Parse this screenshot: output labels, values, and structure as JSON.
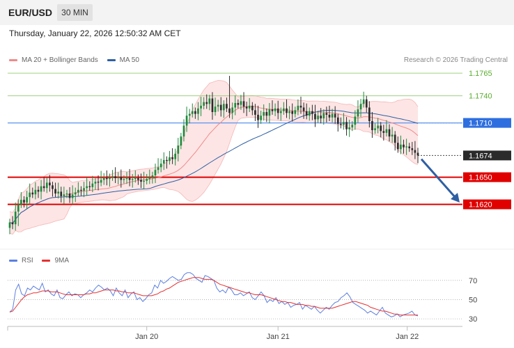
{
  "header": {
    "symbol": "EUR/USD",
    "timeframe": "30 MIN"
  },
  "datetime": "Thursday, January 22, 2026 12:50:32 AM CET",
  "legend": {
    "ma20": {
      "label": "MA 20 + Bollinger Bands",
      "color": "#f08a8a"
    },
    "ma50": {
      "label": "MA 50",
      "color": "#2e5fa3"
    }
  },
  "credit": "Research © 2026 Trading Central",
  "rsi_legend": {
    "rsi": {
      "label": "RSI",
      "color": "#5b7fe0"
    },
    "ma9": {
      "label": "9MA",
      "color": "#e53030"
    }
  },
  "chart_data": [
    {
      "type": "candlestick",
      "title": "EUR/USD 30 MIN",
      "ylim": [
        1.1572,
        1.1772
      ],
      "x_ticks": [
        "Jan 20",
        "Jan 21",
        "Jan 22"
      ],
      "price_levels": [
        {
          "value": 1.1765,
          "label": "1.1765",
          "role": "resistance",
          "color": "#5aad2e"
        },
        {
          "value": 1.174,
          "label": "1.1740",
          "role": "resistance",
          "color": "#5aad2e"
        },
        {
          "value": 1.171,
          "label": "1.1710",
          "role": "pivot",
          "color": "#2e6fe0"
        },
        {
          "value": 1.1674,
          "label": "1.1674",
          "role": "last price",
          "color": "#333333"
        },
        {
          "value": 1.165,
          "label": "1.1650",
          "role": "support",
          "color": "#e00000"
        },
        {
          "value": 1.162,
          "label": "1.1620",
          "role": "support",
          "color": "#e00000"
        }
      ],
      "forecast_arrow": {
        "from": 1.167,
        "to": 1.1622
      },
      "close": [
        1.16,
        1.1598,
        1.1612,
        1.162,
        1.1625,
        1.1622,
        1.1628,
        1.1633,
        1.1631,
        1.1636,
        1.1634,
        1.164,
        1.1638,
        1.1644,
        1.1641,
        1.1637,
        1.1632,
        1.1634,
        1.1629,
        1.1631,
        1.1632,
        1.1627,
        1.1631,
        1.1633,
        1.1636,
        1.1635,
        1.1638,
        1.164,
        1.1639,
        1.1643,
        1.1645,
        1.1644,
        1.1647,
        1.1649,
        1.1648,
        1.165,
        1.1651,
        1.1649,
        1.165,
        1.1647,
        1.1648,
        1.1649,
        1.1647,
        1.1648,
        1.1649,
        1.1647,
        1.1645,
        1.1646,
        1.1648,
        1.165,
        1.1652,
        1.1658,
        1.1661,
        1.1665,
        1.1669,
        1.1668,
        1.1672,
        1.167,
        1.1676,
        1.1685,
        1.1695,
        1.1707,
        1.1718,
        1.172,
        1.1723,
        1.172,
        1.1726,
        1.1729,
        1.1733,
        1.1731,
        1.1737,
        1.1722,
        1.1728,
        1.173,
        1.1724,
        1.1731,
        1.1726,
        1.1721,
        1.1727,
        1.1732,
        1.173,
        1.1734,
        1.1728,
        1.1726,
        1.1729,
        1.1724,
        1.1719,
        1.1713,
        1.1718,
        1.1722,
        1.1718,
        1.1725,
        1.1723,
        1.1726,
        1.1721,
        1.1723,
        1.1726,
        1.1721,
        1.1723,
        1.172,
        1.1724,
        1.1729,
        1.1727,
        1.1723,
        1.1718,
        1.1723,
        1.172,
        1.1714,
        1.1718,
        1.1715,
        1.1721,
        1.1719,
        1.1716,
        1.172,
        1.1716,
        1.1709,
        1.1708,
        1.1711,
        1.1703,
        1.1705,
        1.1708,
        1.1717,
        1.1725,
        1.1731,
        1.1736,
        1.1727,
        1.1712,
        1.1702,
        1.1704,
        1.1707,
        1.1701,
        1.1699,
        1.1703,
        1.1695,
        1.1697,
        1.1688,
        1.1681,
        1.1686,
        1.1683,
        1.1684,
        1.1682,
        1.168,
        1.1677,
        1.1674
      ],
      "series": [
        {
          "name": "MA 20 + Bollinger Bands",
          "color": "#f08a8a"
        },
        {
          "name": "MA 50",
          "color": "#2e5fa3"
        }
      ]
    },
    {
      "type": "line",
      "title": "RSI",
      "ylim": [
        25,
        80
      ],
      "y_ticks": [
        30,
        50,
        70
      ],
      "series": [
        {
          "name": "RSI",
          "color": "#5b7fe0",
          "values": [
            37,
            40,
            60,
            66,
            56,
            54,
            62,
            60,
            64,
            62,
            60,
            67,
            58,
            60,
            56,
            54,
            60,
            52,
            51,
            55,
            58,
            54,
            56,
            55,
            52,
            55,
            57,
            60,
            58,
            62,
            65,
            63,
            60,
            62,
            59,
            54,
            62,
            57,
            54,
            60,
            52,
            56,
            58,
            50,
            52,
            48,
            51,
            55,
            57,
            65,
            62,
            70,
            67,
            69,
            72,
            74,
            72,
            70,
            71,
            76,
            78,
            78,
            76,
            72,
            70,
            68,
            75,
            74,
            72,
            70,
            62,
            58,
            60,
            57,
            63,
            60,
            55,
            55,
            57,
            54,
            56,
            58,
            52,
            50,
            54,
            58,
            54,
            47,
            50,
            48,
            52,
            46,
            48,
            45,
            47,
            42,
            44,
            45,
            47,
            40,
            44,
            42,
            40,
            43,
            39,
            36,
            39,
            42,
            40,
            44,
            47,
            48,
            52,
            54,
            57,
            53,
            47,
            45,
            43,
            41,
            39,
            36,
            38,
            36,
            34,
            38,
            42,
            36,
            34,
            32,
            33,
            35,
            32,
            34,
            35,
            36,
            38,
            34,
            33
          ]
        },
        {
          "name": "9MA",
          "color": "#e53030",
          "values": [
            37,
            38,
            42,
            46,
            50,
            53,
            55,
            56,
            57,
            57,
            58,
            59,
            59,
            59,
            58,
            58,
            58,
            57,
            56,
            55,
            55,
            55,
            55,
            55,
            55,
            55,
            56,
            56,
            57,
            57,
            58,
            59,
            60,
            60,
            60,
            60,
            59,
            59,
            58,
            58,
            57,
            57,
            57,
            56,
            55,
            54,
            54,
            54,
            54,
            55,
            56,
            58,
            59,
            61,
            62,
            64,
            66,
            68,
            69,
            70,
            71,
            72,
            73,
            73,
            73,
            72,
            71,
            71,
            71,
            70,
            68,
            66,
            65,
            64,
            63,
            62,
            61,
            60,
            59,
            58,
            57,
            57,
            56,
            55,
            55,
            55,
            54,
            53,
            52,
            51,
            50,
            49,
            48,
            48,
            47,
            47,
            46,
            45,
            45,
            45,
            44,
            44,
            43,
            43,
            42,
            41,
            41,
            41,
            41,
            41,
            42,
            43,
            44,
            45,
            46,
            47,
            48,
            48,
            47,
            46,
            45,
            44,
            42,
            41,
            40,
            39,
            38,
            38,
            37,
            36,
            35,
            35,
            34,
            34,
            34,
            34,
            34,
            34,
            34
          ]
        }
      ]
    }
  ]
}
